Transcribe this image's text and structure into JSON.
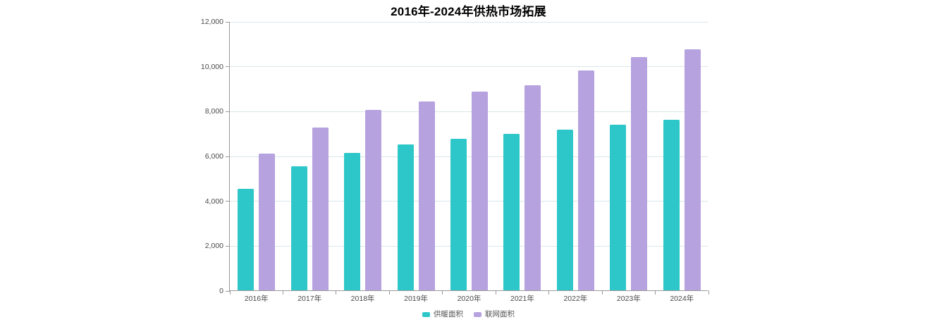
{
  "page": {
    "background": "#ffffff"
  },
  "chart_data": {
    "type": "bar",
    "title": "2016年-2024年供热市场拓展",
    "categories": [
      "2016年",
      "2017年",
      "2018年",
      "2019年",
      "2020年",
      "2021年",
      "2022年",
      "2023年",
      "2024年"
    ],
    "series": [
      {
        "name": "供暖面积",
        "color": "#2ec7c9",
        "values": [
          4530,
          5530,
          6130,
          6500,
          6750,
          6970,
          7150,
          7390,
          7610
        ]
      },
      {
        "name": "联网面积",
        "color": "#b6a2de",
        "values": [
          6090,
          7260,
          8030,
          8420,
          8850,
          9140,
          9810,
          10400,
          10750
        ]
      }
    ],
    "xlabel": "",
    "ylabel": "",
    "ylim": [
      0,
      12000
    ],
    "ytick_interval": 2000,
    "ytick_labels": [
      "0",
      "2,000",
      "4,000",
      "6,000",
      "8,000",
      "10,000",
      "12,000"
    ],
    "grid": true,
    "legend_position": "bottom",
    "colors": {
      "axis": "#999999",
      "gridline": "#d9e7ea",
      "tick": "#999999",
      "axis_label": "#4a4a4a",
      "title": "#000000",
      "legend_text": "#555555"
    }
  }
}
